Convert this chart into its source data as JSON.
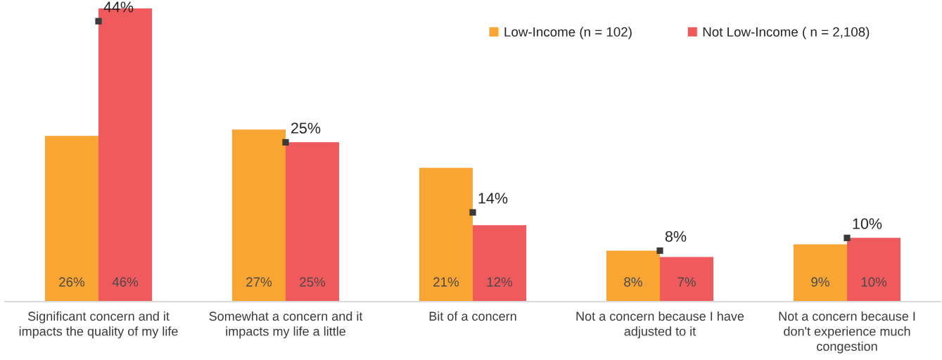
{
  "chart_data": {
    "type": "bar",
    "categories": [
      "Significant concern and it\nimpacts the quality of my life",
      "Somewhat a concern and it\nimpacts my life a little",
      "Bit of a concern",
      "Not a concern because I have\nadjusted to it",
      "Not a concern because I\ndon't experience much\ncongestion"
    ],
    "series": [
      {
        "name": "Low-Income (n = 102)",
        "color": "#f8a531",
        "values": [
          26,
          27,
          21,
          8,
          9
        ],
        "value_labels": [
          "26%",
          "27%",
          "21%",
          "8%",
          "9%"
        ]
      },
      {
        "name": "Not Low-Income ( n = 2,108)",
        "color": "#f05a5c",
        "values": [
          46,
          25,
          12,
          7,
          10
        ],
        "value_labels": [
          "46%",
          "25%",
          "12%",
          "7%",
          "10%"
        ]
      },
      {
        "type": "scatter",
        "marker": "square",
        "color": "#3a3a3a",
        "x": [
          "Significant concern and it\nimpacts the quality of my life",
          "Somewhat a concern and it\nimpacts my life a little",
          "Bit of a concern",
          "Not a concern because I have\nadjusted to it",
          "Not a concern because I\ndon't experience much\ncongestion"
        ],
        "values": [
          44,
          25,
          14,
          8,
          10
        ],
        "value_labels": [
          "44%",
          "25%",
          "14%",
          "8%",
          "10%"
        ]
      }
    ],
    "ylim": [
      0,
      46
    ],
    "tick_labels": "x",
    "legend": "top right"
  }
}
